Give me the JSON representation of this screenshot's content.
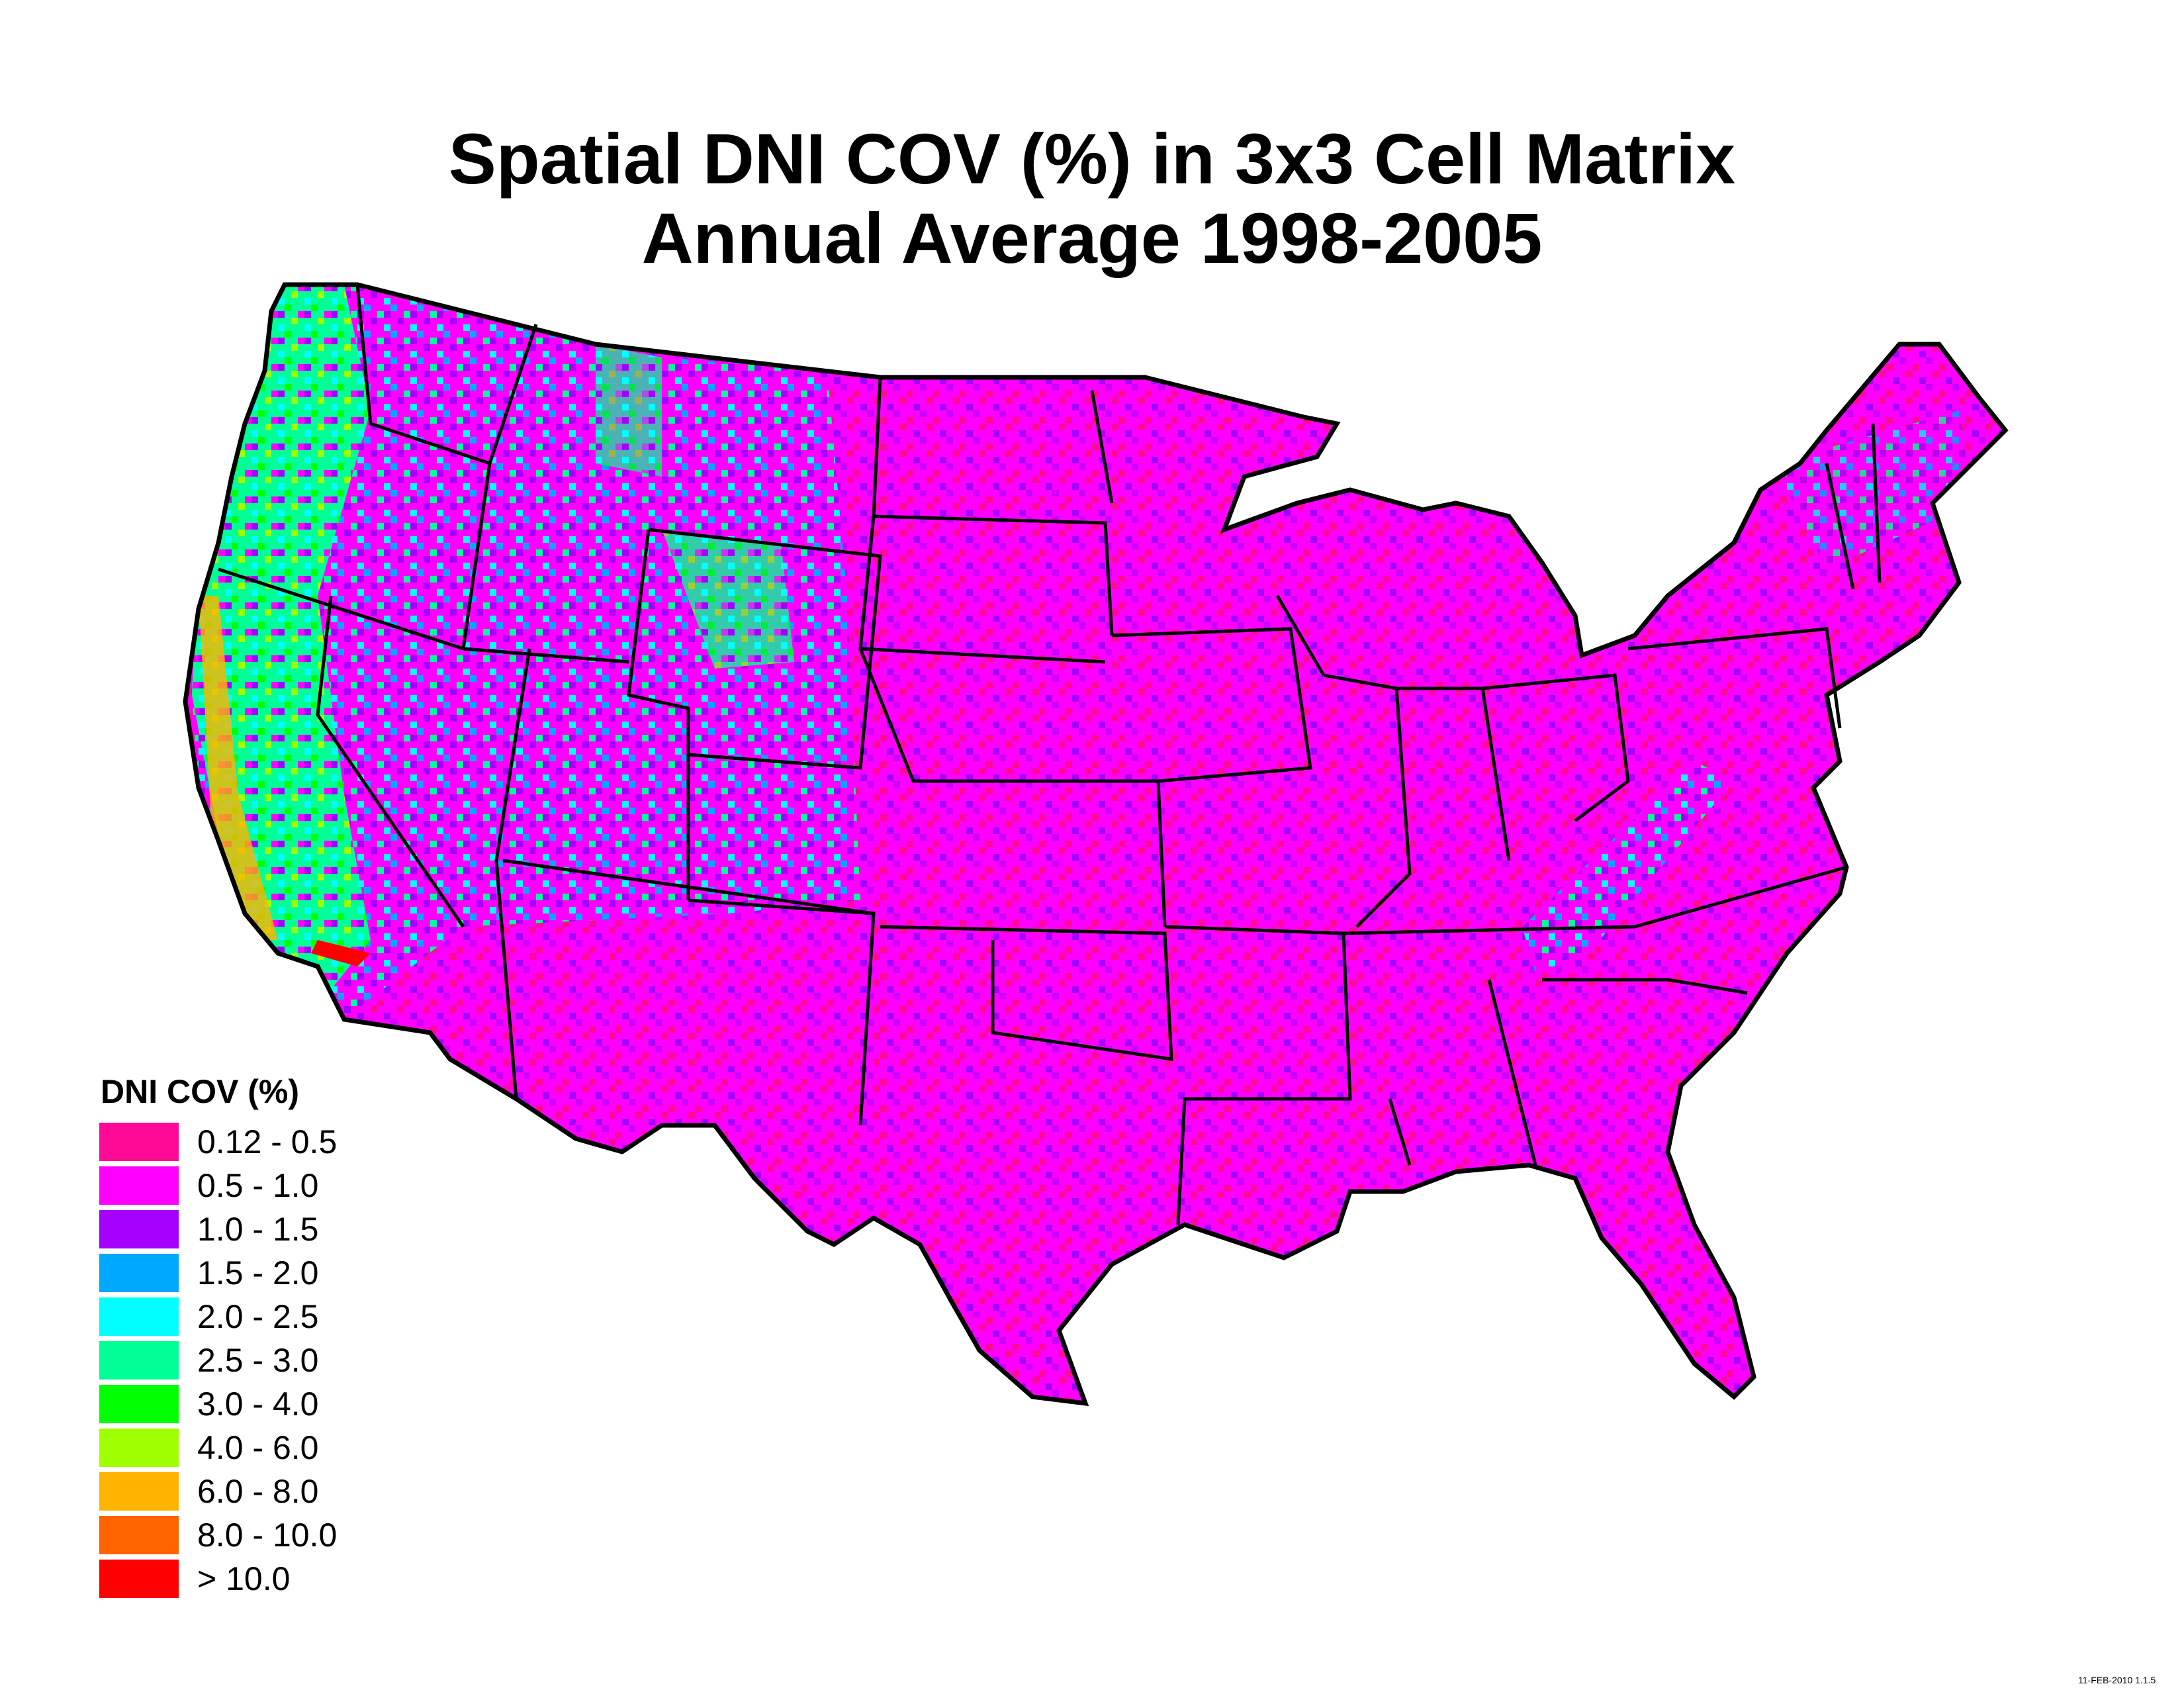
{
  "title": {
    "line1": "Spatial DNI COV (%) in 3x3 Cell Matrix",
    "line2": "Annual Average 1998-2005"
  },
  "legend": {
    "title": "DNI COV (%)",
    "items": [
      {
        "label": "0.12 - 0.5",
        "color": "#ff0a96"
      },
      {
        "label": "0.5 - 1.0",
        "color": "#ff00ff"
      },
      {
        "label": "1.0 - 1.5",
        "color": "#a300ff"
      },
      {
        "label": "1.5 - 2.0",
        "color": "#00a8ff"
      },
      {
        "label": "2.0 - 2.5",
        "color": "#00ffff"
      },
      {
        "label": "2.5 - 3.0",
        "color": "#00ff96"
      },
      {
        "label": "3.0 - 4.0",
        "color": "#00ff00"
      },
      {
        "label": "4.0 - 6.0",
        "color": "#a0ff00"
      },
      {
        "label": "6.0 - 8.0",
        "color": "#ffb400"
      },
      {
        "label": "8.0 - 10.0",
        "color": "#ff6400"
      },
      {
        "label": "> 10.0",
        "color": "#ff0000"
      }
    ]
  },
  "map": {
    "region": "contiguous-united-states",
    "dominant_color": "#ff00ff",
    "border_color": "#000000"
  },
  "footer": {
    "stamp": "11-FEB-2010 1.1.5"
  }
}
